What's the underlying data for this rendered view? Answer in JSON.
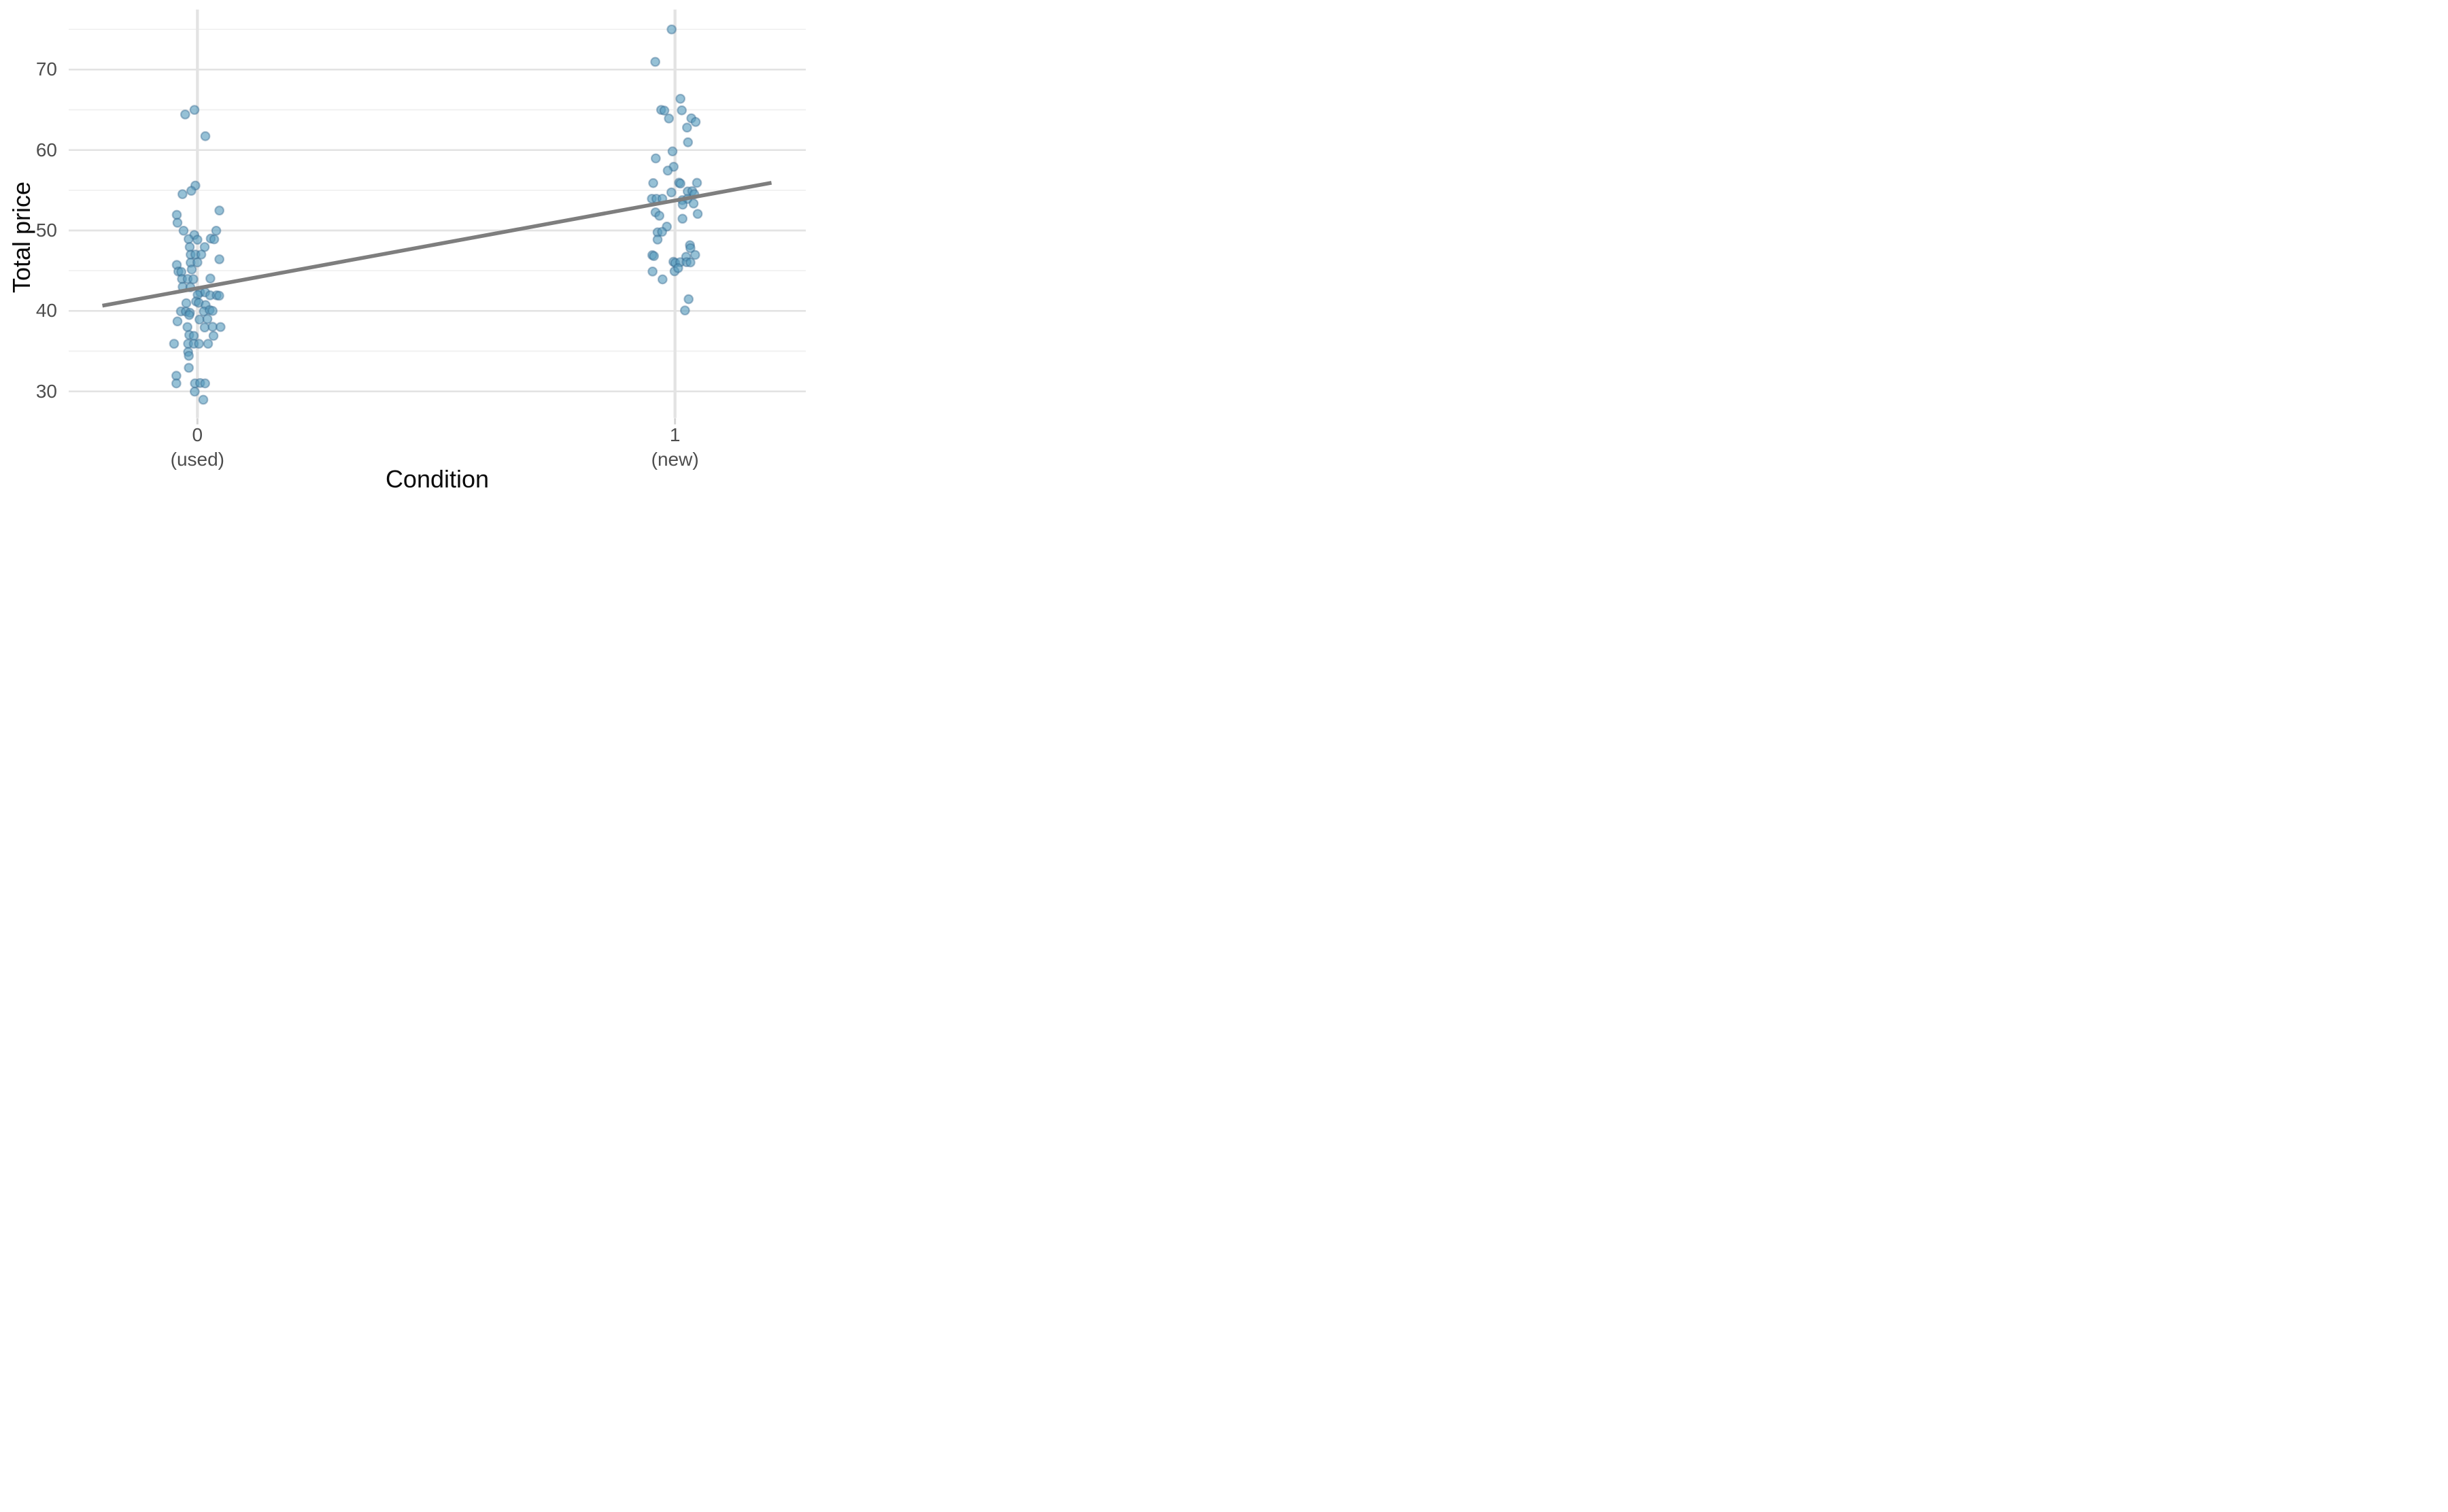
{
  "figure": {
    "background": "#FFFFFF",
    "legend": "none",
    "title": ""
  },
  "style": {
    "point_fill": "#569BBD",
    "point_fill_opacity": 0.62,
    "point_stroke": "#2F6288",
    "point_stroke_opacity": 0.38,
    "trend_color": "#7E7E7E",
    "grid_major_color": "#E3E3E3",
    "grid_minor_color": "#EFEFEF",
    "axis_tick_color": "#D5D5D5",
    "tick_label_color": "#4D4D4D",
    "axis_title_color": "#0A0A0A"
  },
  "chart_data": {
    "type": "scatter",
    "title": "",
    "xlabel": "Condition",
    "ylabel": "Total price",
    "grid": "major+minor",
    "legend_position": "none",
    "x_categories": [
      {
        "position": 0,
        "line1": "0",
        "line2": "(used)"
      },
      {
        "position": 1,
        "line1": "1",
        "line2": "(new)"
      }
    ],
    "y_ticks": [
      30,
      40,
      50,
      60,
      70
    ],
    "y_minor_ticks": [
      35,
      45,
      55,
      65,
      75
    ],
    "ylim": [
      26.7,
      77.5
    ],
    "xlim": [
      -0.27,
      1.27
    ],
    "jitter_note": "x values are jitter offsets in condition units around category positions 0 and 1",
    "series": [
      {
        "name": "condition 0 (used)",
        "points": [
          [
            -0.0256,
            64.42
          ],
          [
            -0.0062,
            64.99
          ],
          [
            0.0166,
            61.72
          ],
          [
            -0.0043,
            55.58
          ],
          [
            -0.0128,
            54.93
          ],
          [
            -0.0313,
            54.51
          ],
          [
            -0.0432,
            51.94
          ],
          [
            -0.0418,
            50.96
          ],
          [
            0.046,
            52.48
          ],
          [
            -0.029,
            49.97
          ],
          [
            -0.0066,
            49.44
          ],
          [
            0.0394,
            49.97
          ],
          [
            -0.0185,
            48.93
          ],
          [
            0,
            48.85
          ],
          [
            0.028,
            48.99
          ],
          [
            0.0351,
            48.9
          ],
          [
            -0.0161,
            47.94
          ],
          [
            0.0152,
            47.94
          ],
          [
            -0.0142,
            46.99
          ],
          [
            -0.0043,
            47.01
          ],
          [
            0.0081,
            47.01
          ],
          [
            0.046,
            46.42
          ],
          [
            -0.0432,
            45.72
          ],
          [
            -0.0142,
            46
          ],
          [
            0,
            46.03
          ],
          [
            -0.0119,
            45.15
          ],
          [
            -0.0399,
            44.9
          ],
          [
            -0.0337,
            44.85
          ],
          [
            -0.0323,
            43.97
          ],
          [
            -0.0204,
            43.97
          ],
          [
            -0.0085,
            43.94
          ],
          [
            0.0271,
            44.03
          ],
          [
            -0.0309,
            42.99
          ],
          [
            -0.0147,
            42.93
          ],
          [
            0.0057,
            42.31
          ],
          [
            0.0161,
            42.31
          ],
          [
            0.0266,
            41.94
          ],
          [
            0.0403,
            41.94
          ],
          [
            0.0456,
            41.89
          ],
          [
            0.0005,
            42
          ],
          [
            -0.0028,
            41.18
          ],
          [
            0.0028,
            41.01
          ],
          [
            -0.0233,
            40.96
          ],
          [
            0.0171,
            40.73
          ],
          [
            -0.0346,
            39.94
          ],
          [
            -0.0242,
            39.92
          ],
          [
            -0.0157,
            39.77
          ],
          [
            0.0133,
            39.94
          ],
          [
            0.0256,
            40.11
          ],
          [
            0.0318,
            40
          ],
          [
            -0.0171,
            39.49
          ],
          [
            -0.0418,
            38.7
          ],
          [
            0.0043,
            38.93
          ],
          [
            0.0209,
            38.99
          ],
          [
            -0.0209,
            38
          ],
          [
            0.0152,
            37.94
          ],
          [
            0.0318,
            38.03
          ],
          [
            0.0484,
            38
          ],
          [
            -0.0171,
            37.01
          ],
          [
            -0.0076,
            36.9
          ],
          [
            0.0337,
            36.9
          ],
          [
            -0.0489,
            35.92
          ],
          [
            -0.0195,
            35.92
          ],
          [
            -0.0076,
            35.92
          ],
          [
            0.0033,
            35.92
          ],
          [
            0.0223,
            35.92
          ],
          [
            -0.0195,
            34.9
          ],
          [
            -0.018,
            34.42
          ],
          [
            -0.018,
            32.93
          ],
          [
            -0.0441,
            31.94
          ],
          [
            -0.0441,
            30.99
          ],
          [
            -0.0052,
            30.99
          ],
          [
            0.0057,
            31.04
          ],
          [
            0.0161,
            30.99
          ],
          [
            -0.0057,
            29.97
          ],
          [
            0.0123,
            28.96
          ]
        ]
      },
      {
        "name": "condition 1 (new)",
        "points": [
          [
            -0.0071,
            74.99
          ],
          [
            -0.0413,
            70.96
          ],
          [
            0.0114,
            66.37
          ],
          [
            -0.029,
            64.99
          ],
          [
            -0.0223,
            64.9
          ],
          [
            0.0142,
            64.93
          ],
          [
            -0.0128,
            63.92
          ],
          [
            0.0342,
            63.94
          ],
          [
            0.0432,
            63.49
          ],
          [
            0.0252,
            62.79
          ],
          [
            0.0271,
            60.96
          ],
          [
            -0.0052,
            59.83
          ],
          [
            -0.0403,
            58.96
          ],
          [
            -0.0028,
            57.92
          ],
          [
            -0.0152,
            57.44
          ],
          [
            -0.0456,
            55.89
          ],
          [
            0.0085,
            55.94
          ],
          [
            0.0114,
            55.83
          ],
          [
            0.046,
            55.92
          ],
          [
            -0.0076,
            54.73
          ],
          [
            0.0266,
            54.85
          ],
          [
            0.0361,
            54.9
          ],
          [
            0.0403,
            54.51
          ],
          [
            -0.0484,
            53.94
          ],
          [
            -0.0389,
            53.94
          ],
          [
            -0.0266,
            53.94
          ],
          [
            0.0152,
            53.77
          ],
          [
            0.0261,
            53.92
          ],
          [
            0.0161,
            53.21
          ],
          [
            0.0389,
            53.35
          ],
          [
            -0.0408,
            52.25
          ],
          [
            -0.0327,
            51.83
          ],
          [
            0.0475,
            52.06
          ],
          [
            0.0157,
            51.46
          ],
          [
            -0.0171,
            50.48
          ],
          [
            -0.0365,
            49.77
          ],
          [
            -0.0271,
            49.83
          ],
          [
            -0.0365,
            48.87
          ],
          [
            -0.0475,
            46.93
          ],
          [
            -0.0441,
            46.82
          ],
          [
            0.0313,
            48.17
          ],
          [
            0.0323,
            47.8
          ],
          [
            0.0422,
            46.96
          ],
          [
            0.0233,
            46.73
          ],
          [
            -0.0033,
            46.11
          ],
          [
            0.0005,
            45.97
          ],
          [
            0.0109,
            46.06
          ],
          [
            0.0242,
            46.06
          ],
          [
            0.0323,
            46.03
          ],
          [
            -0.0009,
            44.93
          ],
          [
            0.0066,
            45.32
          ],
          [
            -0.047,
            44.9
          ],
          [
            -0.0261,
            43.92
          ],
          [
            0.0285,
            41.46
          ],
          [
            0.0209,
            40.06
          ]
        ]
      }
    ],
    "trend_line": {
      "x1": -0.199,
      "y1": 40.65,
      "x2": 1.202,
      "y2": 55.93
    }
  }
}
